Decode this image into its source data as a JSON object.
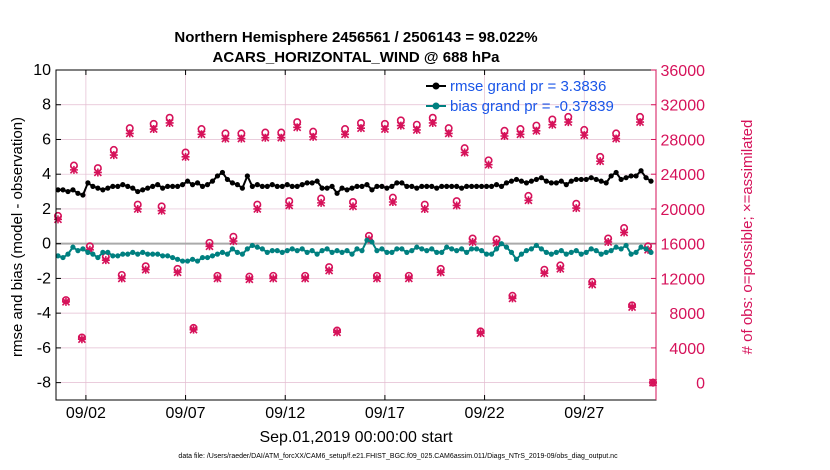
{
  "chart_data": {
    "type": "line",
    "title_line1": "Northern Hemisphere 2456561 / 2506143 = 98.022%",
    "title_line2": "ACARS_HORIZONTAL_WIND @ 688 hPa",
    "xlabel": "Sep.01,2019 00:00:00 start",
    "ylabel_left": "rmse and bias (model - observation)",
    "ylabel_right": "# of obs: o=possible; ×=assimilated",
    "footnote": "data file: /Users/raeder/DAI/ATM_forcXX/CAM6_setup/f.e21.FHIST_BGC.f09_025.CAM6assim.011/Diags_NTrS_2019-09/obs_diag_output.nc",
    "xlim": [
      0.5,
      30.6
    ],
    "ylim_left": [
      -9,
      10
    ],
    "ylim_right": [
      -2000,
      36000
    ],
    "x_ticks": [
      {
        "value": 2,
        "label": "09/02"
      },
      {
        "value": 7,
        "label": "09/07"
      },
      {
        "value": 12,
        "label": "09/12"
      },
      {
        "value": 17,
        "label": "09/17"
      },
      {
        "value": 22,
        "label": "09/22"
      },
      {
        "value": 27,
        "label": "09/27"
      }
    ],
    "y_ticks_left": [
      {
        "value": 10,
        "label": "10"
      },
      {
        "value": 8,
        "label": "8"
      },
      {
        "value": 6,
        "label": "6"
      },
      {
        "value": 4,
        "label": "4"
      },
      {
        "value": 2,
        "label": "2"
      },
      {
        "value": 0,
        "label": "0"
      },
      {
        "value": -2,
        "label": "-2"
      },
      {
        "value": -4,
        "label": "-4"
      },
      {
        "value": -6,
        "label": "-6"
      },
      {
        "value": -8,
        "label": "-8"
      }
    ],
    "y_ticks_right": [
      {
        "value": 36000,
        "label": "36000"
      },
      {
        "value": 32000,
        "label": "32000"
      },
      {
        "value": 28000,
        "label": "28000"
      },
      {
        "value": 24000,
        "label": "24000"
      },
      {
        "value": 20000,
        "label": "20000"
      },
      {
        "value": 16000,
        "label": "16000"
      },
      {
        "value": 12000,
        "label": "12000"
      },
      {
        "value": 8000,
        "label": "8000"
      },
      {
        "value": 4000,
        "label": "4000"
      },
      {
        "value": 0,
        "label": "0"
      }
    ],
    "zero_line": 0,
    "colors": {
      "rmse": "#000000",
      "bias": "#008080",
      "obs": "#d6125a",
      "legend_text": "#1a56e8",
      "axis": "#000000",
      "grid": "#e3bcd0",
      "zero_line": "#aaaaaa"
    },
    "series": [
      {
        "name": "rmse grand pr = 3.3836",
        "axis": "left",
        "x": [
          0.6,
          0.85,
          1.1,
          1.35,
          1.6,
          1.85,
          2.1,
          2.35,
          2.6,
          2.85,
          3.1,
          3.35,
          3.6,
          3.85,
          4.1,
          4.35,
          4.6,
          4.85,
          5.1,
          5.35,
          5.6,
          5.85,
          6.1,
          6.35,
          6.6,
          6.85,
          7.1,
          7.35,
          7.6,
          7.85,
          8.1,
          8.35,
          8.6,
          8.85,
          9.1,
          9.35,
          9.6,
          9.85,
          10.1,
          10.35,
          10.6,
          10.85,
          11.1,
          11.35,
          11.6,
          11.85,
          12.1,
          12.35,
          12.6,
          12.85,
          13.1,
          13.35,
          13.6,
          13.85,
          14.1,
          14.35,
          14.6,
          14.85,
          15.1,
          15.35,
          15.6,
          15.85,
          16.1,
          16.35,
          16.6,
          16.85,
          17.1,
          17.35,
          17.6,
          17.85,
          18.1,
          18.35,
          18.6,
          18.85,
          19.1,
          19.35,
          19.6,
          19.85,
          20.1,
          20.35,
          20.6,
          20.85,
          21.1,
          21.35,
          21.6,
          21.85,
          22.1,
          22.35,
          22.6,
          22.85,
          23.1,
          23.35,
          23.6,
          23.85,
          24.1,
          24.35,
          24.6,
          24.85,
          25.1,
          25.35,
          25.6,
          25.85,
          26.1,
          26.35,
          26.6,
          26.85,
          27.1,
          27.35,
          27.6,
          27.85,
          28.1,
          28.35,
          28.6,
          28.85,
          29.1,
          29.35,
          29.6,
          29.85,
          30.1,
          30.35
        ],
        "values": [
          3.1,
          3.1,
          3.0,
          3.1,
          2.9,
          2.8,
          3.5,
          3.3,
          3.2,
          3.1,
          3.2,
          3.3,
          3.3,
          3.4,
          3.3,
          3.2,
          3.0,
          3.1,
          3.2,
          3.3,
          3.4,
          3.2,
          3.3,
          3.3,
          3.3,
          3.4,
          3.6,
          3.4,
          3.5,
          3.3,
          3.4,
          3.6,
          3.9,
          4.1,
          3.7,
          3.5,
          3.4,
          3.2,
          3.9,
          3.3,
          3.4,
          3.3,
          3.3,
          3.4,
          3.3,
          3.3,
          3.4,
          3.3,
          3.3,
          3.4,
          3.5,
          3.5,
          3.6,
          3.2,
          3.2,
          3.3,
          2.9,
          3.2,
          3.1,
          3.2,
          3.3,
          3.3,
          3.4,
          3.1,
          3.3,
          3.3,
          3.2,
          3.3,
          3.5,
          3.5,
          3.3,
          3.3,
          3.2,
          3.3,
          3.3,
          3.3,
          3.2,
          3.3,
          3.3,
          3.3,
          3.3,
          3.2,
          3.3,
          3.3,
          3.3,
          3.3,
          3.3,
          3.3,
          3.4,
          3.3,
          3.5,
          3.6,
          3.7,
          3.6,
          3.5,
          3.6,
          3.7,
          3.8,
          3.6,
          3.5,
          3.5,
          3.6,
          3.4,
          3.6,
          3.7,
          3.7,
          3.7,
          3.8,
          3.7,
          3.6,
          3.5,
          3.9,
          4.1,
          3.7,
          3.8,
          3.9,
          3.9,
          4.2,
          3.8,
          3.6
        ]
      },
      {
        "name": "bias grand pr = -0.37839",
        "axis": "left",
        "x": [
          0.6,
          0.85,
          1.1,
          1.35,
          1.6,
          1.85,
          2.1,
          2.35,
          2.6,
          2.85,
          3.1,
          3.35,
          3.6,
          3.85,
          4.1,
          4.35,
          4.6,
          4.85,
          5.1,
          5.35,
          5.6,
          5.85,
          6.1,
          6.35,
          6.6,
          6.85,
          7.1,
          7.35,
          7.6,
          7.85,
          8.1,
          8.35,
          8.6,
          8.85,
          9.1,
          9.35,
          9.6,
          9.85,
          10.1,
          10.35,
          10.6,
          10.85,
          11.1,
          11.35,
          11.6,
          11.85,
          12.1,
          12.35,
          12.6,
          12.85,
          13.1,
          13.35,
          13.6,
          13.85,
          14.1,
          14.35,
          14.6,
          14.85,
          15.1,
          15.35,
          15.6,
          15.85,
          16.1,
          16.35,
          16.6,
          16.85,
          17.1,
          17.35,
          17.6,
          17.85,
          18.1,
          18.35,
          18.6,
          18.85,
          19.1,
          19.35,
          19.6,
          19.85,
          20.1,
          20.35,
          20.6,
          20.85,
          21.1,
          21.35,
          21.6,
          21.85,
          22.1,
          22.35,
          22.6,
          22.85,
          23.1,
          23.35,
          23.6,
          23.85,
          24.1,
          24.35,
          24.6,
          24.85,
          25.1,
          25.35,
          25.6,
          25.85,
          26.1,
          26.35,
          26.6,
          26.85,
          27.1,
          27.35,
          27.6,
          27.85,
          28.1,
          28.35,
          28.6,
          28.85,
          29.1,
          29.35,
          29.6,
          29.85,
          30.1,
          30.35
        ],
        "values": [
          -0.7,
          -0.8,
          -0.6,
          -0.2,
          -0.4,
          -0.3,
          -0.5,
          -0.6,
          -0.8,
          -0.5,
          -0.5,
          -0.7,
          -0.7,
          -0.6,
          -0.6,
          -0.5,
          -0.6,
          -0.5,
          -0.6,
          -0.6,
          -0.6,
          -0.7,
          -0.7,
          -0.8,
          -0.9,
          -1.0,
          -1.0,
          -0.9,
          -1.0,
          -0.8,
          -0.8,
          -0.7,
          -0.6,
          -0.5,
          -0.6,
          -0.3,
          -0.5,
          -0.6,
          -0.3,
          -0.1,
          -0.2,
          -0.3,
          -0.5,
          -0.4,
          -0.4,
          -0.5,
          -0.4,
          -0.3,
          -0.4,
          -0.3,
          -0.5,
          -0.4,
          -0.6,
          -0.4,
          -0.3,
          -0.5,
          -0.4,
          -0.5,
          -0.4,
          -0.6,
          -0.3,
          -0.4,
          0.2,
          0.1,
          -0.4,
          -0.3,
          -0.5,
          -0.5,
          -0.3,
          -0.3,
          -0.5,
          -0.4,
          -0.2,
          -0.3,
          -0.4,
          -0.3,
          -0.5,
          -0.5,
          -0.2,
          -0.3,
          -0.4,
          -0.3,
          -0.5,
          -0.3,
          -0.3,
          -0.4,
          -0.6,
          -0.6,
          -0.3,
          0.0,
          -0.2,
          -0.5,
          -0.9,
          -0.6,
          -0.4,
          -0.3,
          -0.1,
          -0.3,
          -0.5,
          -0.6,
          -0.5,
          -0.4,
          -0.6,
          -0.5,
          -0.4,
          -0.6,
          -0.5,
          -0.3,
          -0.4,
          -0.6,
          -0.5,
          -0.4,
          -0.2,
          -0.3,
          -0.1,
          -0.6,
          -0.5,
          -0.2,
          -0.3,
          -0.5
        ]
      },
      {
        "name": "obs possible",
        "axis": "right",
        "marker": "o",
        "x": [
          0.6,
          1.0,
          1.4,
          1.8,
          2.2,
          2.6,
          3.0,
          3.4,
          3.8,
          4.2,
          4.6,
          5.0,
          5.4,
          5.8,
          6.2,
          6.6,
          7.0,
          7.4,
          7.8,
          8.2,
          8.6,
          9.0,
          9.4,
          9.8,
          10.2,
          10.6,
          11.0,
          11.4,
          11.8,
          12.2,
          12.6,
          13.0,
          13.4,
          13.8,
          14.2,
          14.6,
          15.0,
          15.4,
          15.8,
          16.2,
          16.6,
          17.0,
          17.4,
          17.8,
          18.2,
          18.6,
          19.0,
          19.4,
          19.8,
          20.2,
          20.6,
          21.0,
          21.4,
          21.8,
          22.2,
          22.6,
          23.0,
          23.4,
          23.8,
          24.2,
          24.6,
          25.0,
          25.4,
          25.8,
          26.2,
          26.6,
          27.0,
          27.4,
          27.8,
          28.2,
          28.6,
          29.0,
          29.4,
          29.8,
          30.2,
          30.45
        ],
        "values": [
          19200,
          9500,
          25000,
          5200,
          15700,
          24700,
          14500,
          26800,
          12400,
          29300,
          20500,
          13400,
          29800,
          20300,
          30500,
          13100,
          26500,
          6300,
          29200,
          16100,
          12300,
          28700,
          16800,
          28700,
          12200,
          20500,
          28800,
          12300,
          28800,
          20900,
          30000,
          12300,
          28900,
          21200,
          13300,
          6000,
          29200,
          20800,
          29900,
          16900,
          12300,
          29800,
          21300,
          30200,
          12300,
          29700,
          20500,
          30500,
          13100,
          29300,
          20900,
          27000,
          16600,
          5900,
          25600,
          16500,
          29000,
          10000,
          29200,
          21500,
          29600,
          13000,
          30300,
          13500,
          30600,
          20600,
          29100,
          11600,
          26000,
          16600,
          28700,
          17800,
          8900,
          30600,
          15700,
          0
        ]
      },
      {
        "name": "obs assimilated",
        "axis": "right",
        "marker": "x",
        "x": [
          0.6,
          1.0,
          1.4,
          1.8,
          2.2,
          2.6,
          3.0,
          3.4,
          3.8,
          4.2,
          4.6,
          5.0,
          5.4,
          5.8,
          6.2,
          6.6,
          7.0,
          7.4,
          7.8,
          8.2,
          8.6,
          9.0,
          9.4,
          9.8,
          10.2,
          10.6,
          11.0,
          11.4,
          11.8,
          12.2,
          12.6,
          13.0,
          13.4,
          13.8,
          14.2,
          14.6,
          15.0,
          15.4,
          15.8,
          16.2,
          16.6,
          17.0,
          17.4,
          17.8,
          18.2,
          18.6,
          19.0,
          19.4,
          19.8,
          20.2,
          20.6,
          21.0,
          21.4,
          21.8,
          22.2,
          22.6,
          23.0,
          23.4,
          23.8,
          24.2,
          24.6,
          25.0,
          25.4,
          25.8,
          26.2,
          26.6,
          27.0,
          27.4,
          27.8,
          28.2,
          28.6,
          29.0,
          29.4,
          29.8,
          30.2,
          30.45
        ],
        "values": [
          18800,
          9300,
          24500,
          5000,
          15300,
          24200,
          14100,
          26200,
          12000,
          28700,
          20000,
          13000,
          29200,
          19800,
          29900,
          12700,
          26000,
          6100,
          28600,
          15700,
          12000,
          28100,
          16300,
          28100,
          11900,
          20000,
          28200,
          12000,
          28200,
          20400,
          29400,
          12000,
          28300,
          20700,
          12900,
          5800,
          28600,
          20300,
          29300,
          16500,
          12000,
          29200,
          20800,
          29600,
          12000,
          29100,
          20000,
          29900,
          12700,
          28700,
          20400,
          26500,
          16200,
          5700,
          25100,
          16100,
          28400,
          9700,
          28600,
          21000,
          29000,
          12600,
          29700,
          13100,
          30000,
          20100,
          28500,
          11300,
          25500,
          16200,
          28100,
          17300,
          8700,
          30000,
          15300,
          0
        ]
      }
    ]
  }
}
